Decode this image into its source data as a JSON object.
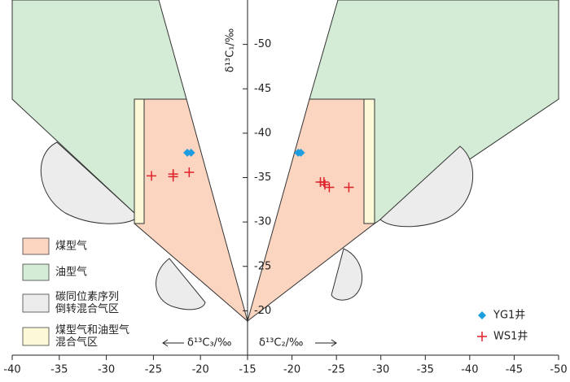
{
  "chart_data": {
    "type": "scatter",
    "ylabel": "δ¹³C₁/‰",
    "xlabel": "δ¹³C₃/‰",
    "x2label": "δ¹³C₂/‰",
    "ylim": [
      -15,
      -55
    ],
    "yticks": [
      -20,
      -25,
      -30,
      -35,
      -40,
      -45,
      -50
    ],
    "xlim": [
      -40,
      -15
    ],
    "xticks": [
      -40,
      -35,
      -30,
      -25,
      -20,
      -15
    ],
    "x2lim": [
      -15,
      -50
    ],
    "x2ticks": [
      -20,
      -25,
      -30,
      -35,
      -40,
      -45,
      -50
    ],
    "regions": [
      {
        "name": [
          "煤型气"
        ],
        "color": "#fbd5c0"
      },
      {
        "name": [
          "油型气"
        ],
        "color": "#d4ecd6"
      },
      {
        "name": [
          "碳同位素序列",
          "倒转混合气区"
        ],
        "color": "#ececec"
      },
      {
        "name": [
          "煤型气和油型气",
          "混合气区"
        ],
        "color": "#fdf8d6"
      }
    ],
    "series": [
      {
        "name": "YG1井",
        "color": "#1e9de0",
        "marker": "diamond",
        "x": [
          -21.4,
          -21.0
        ],
        "y": [
          -37.8,
          -37.8
        ],
        "x2": [
          -20.7,
          -21.0
        ],
        "y2": [
          -37.8,
          -37.8
        ]
      },
      {
        "name": "WS1井",
        "color": "#e0202a",
        "marker": "plus",
        "x": [
          -25.2,
          -22.9,
          -22.9,
          -21.2
        ],
        "y": [
          -35.2,
          -35.4,
          -35.1,
          -35.6
        ],
        "x2": [
          -23.2,
          -23.6,
          -23.7,
          -24.2,
          -26.4
        ],
        "y2": [
          -34.5,
          -34.5,
          -34.2,
          -33.9,
          -33.9
        ]
      }
    ]
  }
}
